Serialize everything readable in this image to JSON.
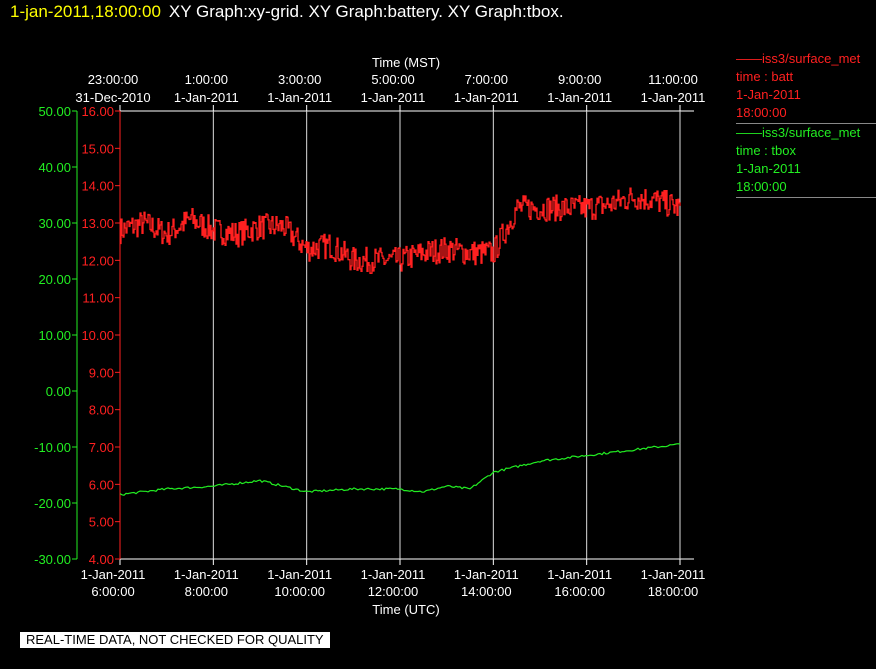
{
  "header": {
    "timestamp": "1-jan-2011,18:00:00",
    "title": "XY Graph:xy-grid.  XY Graph:battery.  XY Graph:tbox."
  },
  "legend": [
    {
      "line1": "iss3/surface_met",
      "line2": "time : batt",
      "line3": "1-Jan-2011",
      "line4": "18:00:00",
      "color": "#ff2020"
    },
    {
      "line1": "iss3/surface_met",
      "line2": "time : tbox",
      "line3": "1-Jan-2011",
      "line4": "18:00:00",
      "color": "#22ee22"
    }
  ],
  "footer": "REAL-TIME DATA, NOT CHECKED FOR QUALITY",
  "chart_data": {
    "type": "line",
    "top_axis_title": "Time (MST)",
    "bottom_axis_title": "Time (UTC)",
    "xlim": [
      "2011-01-01 06:00",
      "2011-01-01 18:00"
    ],
    "x_ticks_utc": [
      {
        "date": "1-Jan-2011",
        "time": "6:00:00"
      },
      {
        "date": "1-Jan-2011",
        "time": "8:00:00"
      },
      {
        "date": "1-Jan-2011",
        "time": "10:00:00"
      },
      {
        "date": "1-Jan-2011",
        "time": "12:00:00"
      },
      {
        "date": "1-Jan-2011",
        "time": "14:00:00"
      },
      {
        "date": "1-Jan-2011",
        "time": "16:00:00"
      },
      {
        "date": "1-Jan-2011",
        "time": "18:00:00"
      }
    ],
    "x_ticks_mst": [
      {
        "time": "23:00:00",
        "date": "31-Dec-2010"
      },
      {
        "time": "1:00:00",
        "date": "1-Jan-2011"
      },
      {
        "time": "3:00:00",
        "date": "1-Jan-2011"
      },
      {
        "time": "5:00:00",
        "date": "1-Jan-2011"
      },
      {
        "time": "7:00:00",
        "date": "1-Jan-2011"
      },
      {
        "time": "9:00:00",
        "date": "1-Jan-2011"
      },
      {
        "time": "11:00:00",
        "date": "1-Jan-2011"
      }
    ],
    "vertical_grid": true,
    "left_axis_outer": {
      "color": "#22ee22",
      "ylim": [
        -30,
        50
      ],
      "ticks": [
        "50.00",
        "40.00",
        "30.00",
        "20.00",
        "10.00",
        "0.00",
        "-10.00",
        "-20.00",
        "-30.00"
      ]
    },
    "left_axis_inner": {
      "color": "#ff2020",
      "ylim": [
        4,
        16
      ],
      "ticks": [
        "16.00",
        "15.00",
        "14.00",
        "13.00",
        "12.00",
        "11.00",
        "10.00",
        "9.00",
        "8.00",
        "7.00",
        "6.00",
        "5.00",
        "4.00"
      ]
    },
    "series": [
      {
        "axis": "inner",
        "color": "#ff2020",
        "x": [
          "2011-01-01 06:00",
          "2011-01-01 06:30",
          "2011-01-01 07:00",
          "2011-01-01 07:30",
          "2011-01-01 08:00",
          "2011-01-01 08:30",
          "2011-01-01 09:00",
          "2011-01-01 09:30",
          "2011-01-01 10:00",
          "2011-01-01 10:30",
          "2011-01-01 11:00",
          "2011-01-01 11:30",
          "2011-01-01 12:00",
          "2011-01-01 12:30",
          "2011-01-01 13:00",
          "2011-01-01 13:30",
          "2011-01-01 14:00",
          "2011-01-01 14:30",
          "2011-01-01 15:00",
          "2011-01-01 15:30",
          "2011-01-01 16:00",
          "2011-01-01 16:30",
          "2011-01-01 17:00",
          "2011-01-01 17:30",
          "2011-01-01 18:00"
        ],
        "y": [
          12.8,
          13.0,
          12.7,
          13.1,
          12.8,
          12.7,
          12.9,
          12.9,
          12.3,
          12.4,
          12.0,
          12.0,
          12.0,
          12.2,
          12.3,
          12.2,
          12.2,
          13.4,
          13.4,
          13.4,
          13.4,
          13.5,
          13.7,
          13.6,
          13.4
        ],
        "noise": 0.35
      },
      {
        "axis": "outer",
        "color": "#22ee22",
        "x": [
          "2011-01-01 06:00",
          "2011-01-01 07:00",
          "2011-01-01 08:00",
          "2011-01-01 09:00",
          "2011-01-01 10:00",
          "2011-01-01 11:00",
          "2011-01-01 12:00",
          "2011-01-01 12:30",
          "2011-01-01 13:00",
          "2011-01-01 13:30",
          "2011-01-01 14:00",
          "2011-01-01 15:00",
          "2011-01-01 16:00",
          "2011-01-01 17:00",
          "2011-01-01 18:00"
        ],
        "y": [
          -18.5,
          -17.5,
          -17.0,
          -16.0,
          -18.0,
          -17.5,
          -17.5,
          -18.0,
          -17.0,
          -17.5,
          -14.5,
          -12.5,
          -11.5,
          -10.5,
          -9.5
        ],
        "noise": 0.2
      }
    ]
  }
}
